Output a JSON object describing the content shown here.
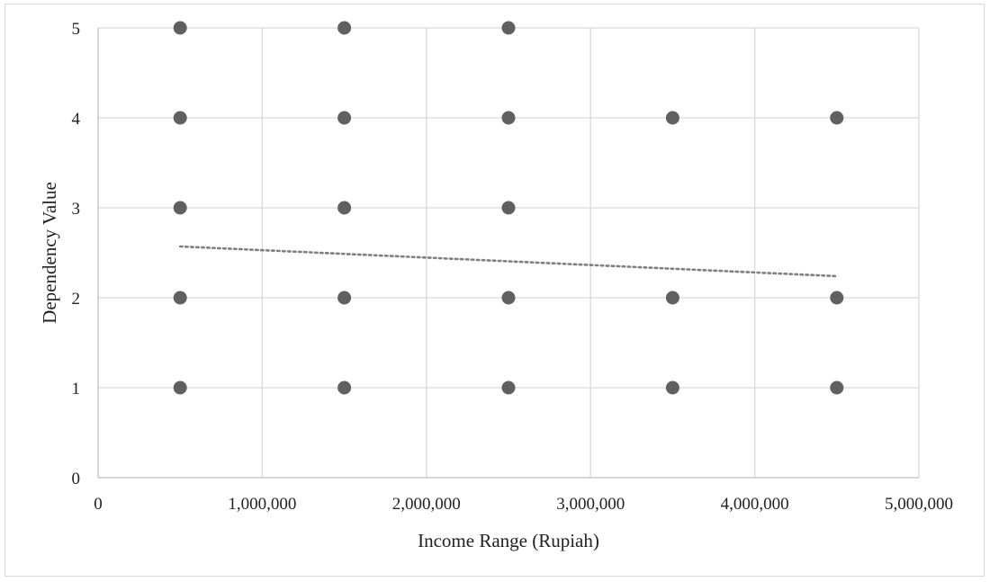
{
  "chart_data": {
    "type": "scatter",
    "title": "",
    "xlabel": "Income Range (Rupiah)",
    "ylabel": "Dependency Value",
    "xlim": [
      0,
      5000000
    ],
    "ylim": [
      0,
      5
    ],
    "x_ticks": [
      0,
      1000000,
      2000000,
      3000000,
      4000000,
      5000000
    ],
    "x_tick_labels": [
      "0",
      "1,000,000",
      "2,000,000",
      "3,000,000",
      "4,000,000",
      "5,000,000"
    ],
    "y_ticks": [
      0,
      1,
      2,
      3,
      4,
      5
    ],
    "y_tick_labels": [
      "0",
      "1",
      "2",
      "3",
      "4",
      "5"
    ],
    "grid": true,
    "legend": "none",
    "colors": {
      "marker": "#606060",
      "trendline": "#7f7f7f",
      "grid": "#d9d9d9"
    },
    "series": [
      {
        "points": [
          {
            "x": 500000,
            "y": 5
          },
          {
            "x": 500000,
            "y": 4
          },
          {
            "x": 500000,
            "y": 3
          },
          {
            "x": 500000,
            "y": 2
          },
          {
            "x": 500000,
            "y": 1
          },
          {
            "x": 1500000,
            "y": 5
          },
          {
            "x": 1500000,
            "y": 4
          },
          {
            "x": 1500000,
            "y": 3
          },
          {
            "x": 1500000,
            "y": 2
          },
          {
            "x": 1500000,
            "y": 1
          },
          {
            "x": 2500000,
            "y": 5
          },
          {
            "x": 2500000,
            "y": 4
          },
          {
            "x": 2500000,
            "y": 3
          },
          {
            "x": 2500000,
            "y": 2
          },
          {
            "x": 2500000,
            "y": 1
          },
          {
            "x": 3500000,
            "y": 4
          },
          {
            "x": 3500000,
            "y": 2
          },
          {
            "x": 3500000,
            "y": 1
          },
          {
            "x": 4500000,
            "y": 4
          },
          {
            "x": 4500000,
            "y": 2
          },
          {
            "x": 4500000,
            "y": 1
          }
        ]
      }
    ],
    "trendline": {
      "style": "dotted",
      "x": [
        500000,
        4500000
      ],
      "y": [
        2.57,
        2.24
      ]
    }
  }
}
